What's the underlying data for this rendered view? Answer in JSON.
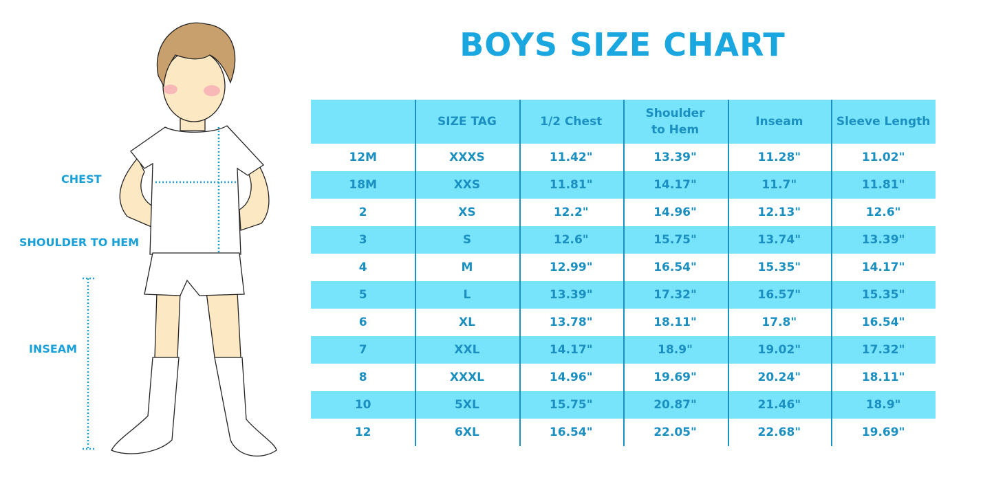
{
  "title": "BOYS SIZE CHART",
  "figure_labels": {
    "chest": "CHEST",
    "shoulder_to_hem": "SHOULDER TO HEM",
    "inseam": "INSEAM"
  },
  "colors": {
    "title": "#1aa7e0",
    "header_fill": "#78e4fc",
    "text": "#1a8fc0",
    "skin": "#fde8c4",
    "hair": "#c8a06e"
  },
  "table": {
    "headers": [
      "",
      "SIZE TAG",
      "1/2 Chest",
      "Shoulder to Hem",
      "Inseam",
      "Sleeve Length"
    ],
    "rows": [
      [
        "12M",
        "XXXS",
        "11.42\"",
        "13.39\"",
        "11.28\"",
        "11.02\""
      ],
      [
        "18M",
        "XXS",
        "11.81\"",
        "14.17\"",
        "11.7\"",
        "11.81\""
      ],
      [
        "2",
        "XS",
        "12.2\"",
        "14.96\"",
        "12.13\"",
        "12.6\""
      ],
      [
        "3",
        "S",
        "12.6\"",
        "15.75\"",
        "13.74\"",
        "13.39\""
      ],
      [
        "4",
        "M",
        "12.99\"",
        "16.54\"",
        "15.35\"",
        "14.17\""
      ],
      [
        "5",
        "L",
        "13.39\"",
        "17.32\"",
        "16.57\"",
        "15.35\""
      ],
      [
        "6",
        "XL",
        "13.78\"",
        "18.11\"",
        "17.8\"",
        "16.54\""
      ],
      [
        "7",
        "XXL",
        "14.17\"",
        "18.9\"",
        "19.02\"",
        "17.32\""
      ],
      [
        "8",
        "XXXL",
        "14.96\"",
        "19.69\"",
        "20.24\"",
        "18.11\""
      ],
      [
        "10",
        "5XL",
        "15.75\"",
        "20.87\"",
        "21.46\"",
        "18.9\""
      ],
      [
        "12",
        "6XL",
        "16.54\"",
        "22.05\"",
        "22.68\"",
        "19.69\""
      ]
    ]
  }
}
